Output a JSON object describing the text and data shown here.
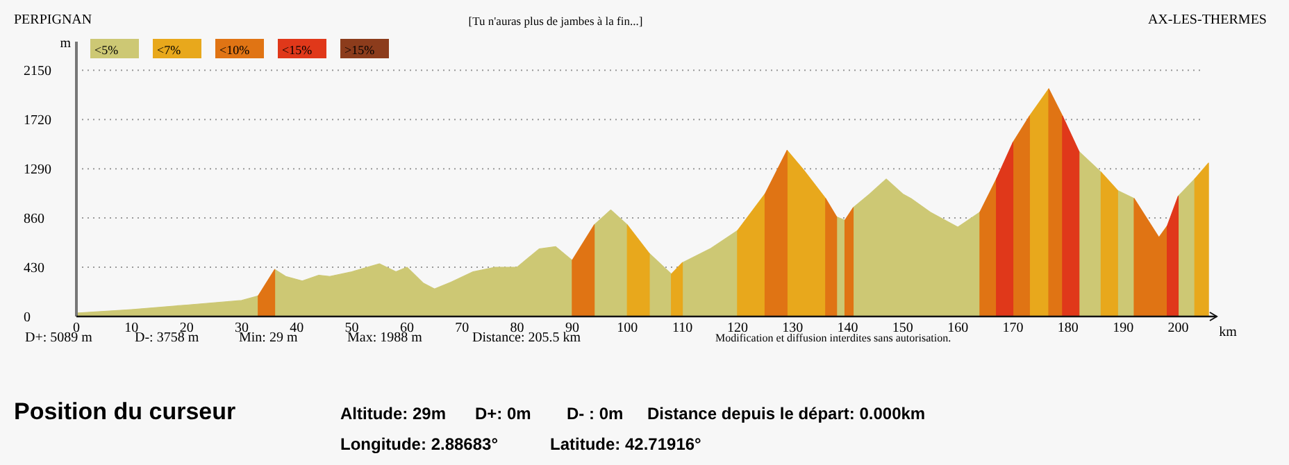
{
  "chart_data": {
    "type": "area",
    "title": "[Tu n'auras plus de jambes à la fin...]",
    "xlabel": "km",
    "ylabel": "m",
    "xlim": [
      0,
      207
    ],
    "xticks": [
      0,
      10,
      20,
      30,
      40,
      50,
      60,
      70,
      80,
      90,
      100,
      110,
      120,
      130,
      140,
      150,
      160,
      170,
      180,
      190,
      200
    ],
    "ylim": [
      0,
      2400
    ],
    "yticks": [
      0,
      430,
      860,
      1290,
      1720,
      2150
    ],
    "grid": "y",
    "legend": "top left",
    "annotations": [
      "PERPIGNAN",
      "AX-LES-THERMES",
      "D+: 5089 m",
      "D-: 3758 m",
      "Min: 29 m",
      "Max: 1988 m",
      "Distance: 205.5 km",
      "Modification et diffusion interdites sans autorisation.",
      "Position du curseur",
      "Altitude: 29m",
      "D+: 0m",
      "D- : 0m",
      "Distance depuis le départ: 0.000km",
      "Longitude: 2.88683°",
      "Latitude: 42.71916°",
      ">15%"
    ],
    "series": [
      {
        "name": "<5%",
        "color": "#cdc874",
        "x": [
          0,
          10,
          20,
          30,
          33
        ],
        "values": [
          30,
          60,
          100,
          140,
          180
        ]
      },
      {
        "color": "#cdc874",
        "x": [
          36,
          38,
          41,
          44,
          46,
          50,
          55,
          58,
          60,
          63,
          65,
          68,
          72,
          76,
          80,
          84,
          87,
          90
        ],
        "values": [
          410,
          350,
          310,
          360,
          350,
          390,
          460,
          390,
          430,
          290,
          240,
          300,
          390,
          430,
          430,
          590,
          610,
          490
        ]
      },
      {
        "color": "#cdc874",
        "x": [
          94,
          97,
          100
        ],
        "values": [
          800,
          930,
          800
        ]
      },
      {
        "color": "#cdc874",
        "x": [
          104,
          108
        ],
        "values": [
          550,
          370
        ]
      },
      {
        "color": "#cdc874",
        "x": [
          110,
          115,
          120
        ],
        "values": [
          470,
          590,
          750
        ]
      },
      {
        "color": "#cdc874",
        "x": [
          138,
          139.5
        ],
        "values": [
          870,
          840
        ]
      },
      {
        "color": "#cdc874",
        "x": [
          141,
          144,
          147,
          150,
          151.5,
          155,
          160,
          164
        ],
        "values": [
          950,
          1070,
          1200,
          1070,
          1030,
          910,
          780,
          910
        ]
      },
      {
        "color": "#cdc874",
        "x": [
          182,
          186
        ],
        "values": [
          1440,
          1260
        ]
      },
      {
        "color": "#cdc874",
        "x": [
          189,
          192
        ],
        "values": [
          1100,
          1030
        ]
      },
      {
        "color": "#cdc874",
        "x": [
          200,
          203
        ],
        "values": [
          1050,
          1200
        ]
      },
      {
        "name": "<7%",
        "color": "#e8a81c",
        "x": [
          100,
          104
        ],
        "values": [
          800,
          550
        ]
      },
      {
        "color": "#e8a81c",
        "x": [
          108,
          110
        ],
        "values": [
          370,
          470
        ]
      },
      {
        "color": "#e8a81c",
        "x": [
          120,
          125
        ],
        "values": [
          750,
          1070
        ]
      },
      {
        "color": "#e8a81c",
        "x": [
          129,
          132,
          136
        ],
        "values": [
          1450,
          1280,
          1030
        ]
      },
      {
        "color": "#e8a81c",
        "x": [
          173,
          176.5
        ],
        "values": [
          1750,
          1988
        ]
      },
      {
        "color": "#e8a81c",
        "x": [
          186,
          189
        ],
        "values": [
          1260,
          1100
        ]
      },
      {
        "color": "#e8a81c",
        "x": [
          203,
          205.5
        ],
        "values": [
          1200,
          1340
        ]
      },
      {
        "name": "<10%",
        "color": "#e07414",
        "x": [
          33,
          36
        ],
        "values": [
          180,
          410
        ]
      },
      {
        "color": "#e07414",
        "x": [
          90,
          94
        ],
        "values": [
          490,
          800
        ]
      },
      {
        "color": "#e07414",
        "x": [
          125,
          129
        ],
        "values": [
          1070,
          1450
        ]
      },
      {
        "color": "#e07414",
        "x": [
          136,
          138
        ],
        "values": [
          1030,
          870
        ]
      },
      {
        "color": "#e07414",
        "x": [
          139.5,
          141
        ],
        "values": [
          840,
          950
        ]
      },
      {
        "color": "#e07414",
        "x": [
          164,
          167
        ],
        "values": [
          910,
          1200
        ]
      },
      {
        "color": "#e07414",
        "x": [
          170,
          173
        ],
        "values": [
          1520,
          1750
        ]
      },
      {
        "color": "#e07414",
        "x": [
          176.5,
          179
        ],
        "values": [
          1988,
          1750
        ]
      },
      {
        "color": "#e07414",
        "x": [
          192,
          196.5,
          198
        ],
        "values": [
          1030,
          690,
          790
        ]
      },
      {
        "name": "<15%",
        "color": "#e0381a",
        "x": [
          167,
          170
        ],
        "values": [
          1200,
          1520
        ]
      },
      {
        "color": "#e0381a",
        "x": [
          179,
          182
        ],
        "values": [
          1750,
          1440
        ]
      },
      {
        "color": "#e0381a",
        "x": [
          198,
          200
        ],
        "values": [
          790,
          1050
        ]
      }
    ]
  }
}
